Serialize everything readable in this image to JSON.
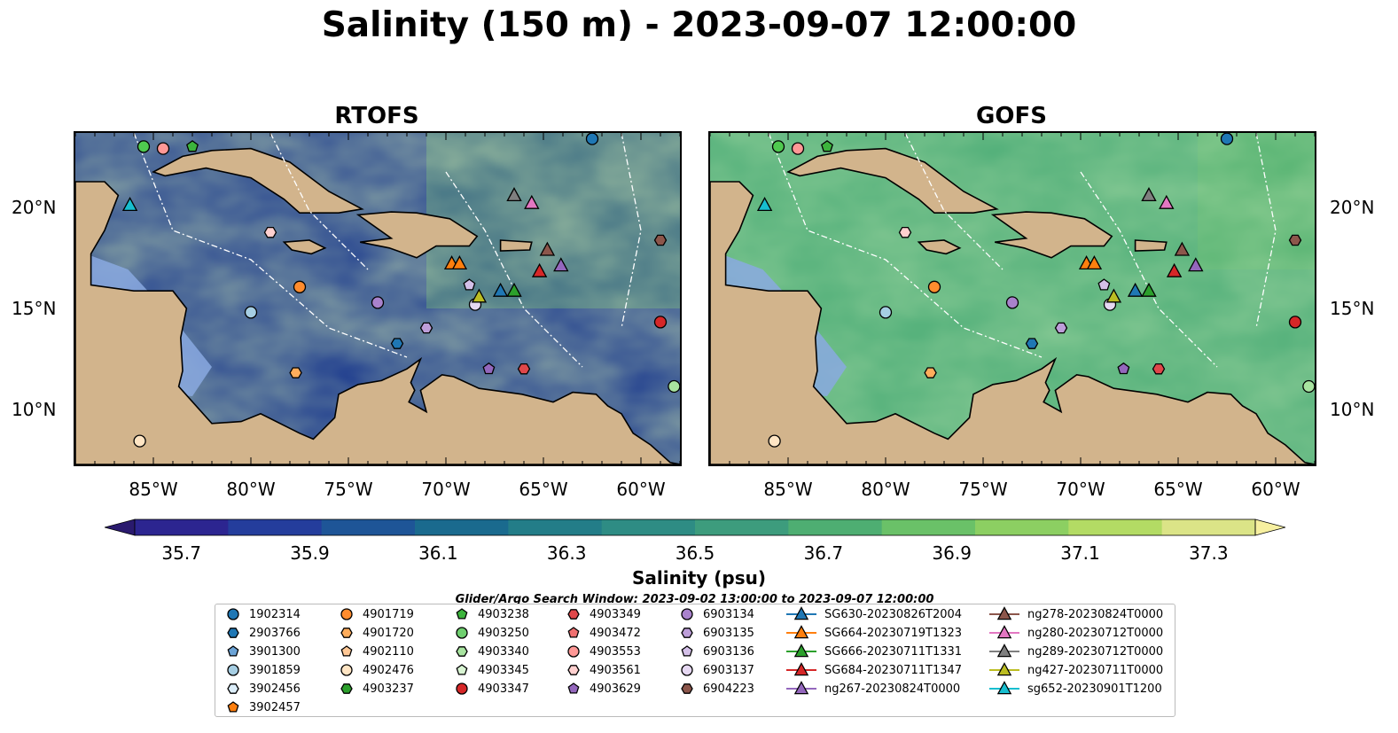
{
  "title": "Salinity (150 m) - 2023-09-07 12:00:00",
  "panels": [
    {
      "title": "RTOFS",
      "ocean_color": "#1f3d8f"
    },
    {
      "title": "GOFS",
      "ocean_color": "#4fae78"
    }
  ],
  "lat_labels": [
    "20°N",
    "15°N",
    "10°N"
  ],
  "lon_labels": [
    "85°W",
    "80°W",
    "75°W",
    "70°W",
    "65°W",
    "60°W"
  ],
  "colorbar": {
    "label": "Salinity (psu)",
    "ticks": [
      "35.7",
      "35.9",
      "36.1",
      "36.3",
      "36.5",
      "36.7",
      "36.9",
      "37.1",
      "37.3"
    ],
    "colors": [
      "#2a1a6e",
      "#2c2590",
      "#243d9c",
      "#1e5597",
      "#1a6a8e",
      "#237d88",
      "#2e8c84",
      "#3d9c7d",
      "#4eae72",
      "#6ac168",
      "#8ccf62",
      "#b3db64",
      "#dbe487",
      "#f7f0a0"
    ]
  },
  "search_window": "Glider/Argo Search Window: 2023-09-02 13:00:00 to 2023-09-07 12:00:00",
  "legend": [
    {
      "label": "1902314",
      "shape": "circle",
      "color": "#1f77b4"
    },
    {
      "label": "2903766",
      "shape": "hexagon",
      "color": "#1f77b4"
    },
    {
      "label": "3901300",
      "shape": "pentagon",
      "color": "#6ba3d6"
    },
    {
      "label": "3901859",
      "shape": "circle",
      "color": "#a6cee3"
    },
    {
      "label": "3902456",
      "shape": "hexagon",
      "color": "#dceefa"
    },
    {
      "label": "3902457",
      "shape": "pentagon",
      "color": "#ff7f0e"
    },
    {
      "label": "4901719",
      "shape": "circle",
      "color": "#ff8c2e"
    },
    {
      "label": "4901720",
      "shape": "hexagon",
      "color": "#ffad5c"
    },
    {
      "label": "4902110",
      "shape": "pentagon",
      "color": "#ffc896"
    },
    {
      "label": "4902476",
      "shape": "circle",
      "color": "#ffe5c4"
    },
    {
      "label": "4903237",
      "shape": "hexagon",
      "color": "#2ca02c"
    },
    {
      "label": "4903238",
      "shape": "pentagon",
      "color": "#3cb43c"
    },
    {
      "label": "4903250",
      "shape": "circle",
      "color": "#6fcf6f"
    },
    {
      "label": "4903340",
      "shape": "hexagon",
      "color": "#a8e4a0"
    },
    {
      "label": "4903345",
      "shape": "pentagon",
      "color": "#d9f5d3"
    },
    {
      "label": "4903347",
      "shape": "circle",
      "color": "#d62728"
    },
    {
      "label": "4903349",
      "shape": "hexagon",
      "color": "#e0474a"
    },
    {
      "label": "4903472",
      "shape": "pentagon",
      "color": "#f07070"
    },
    {
      "label": "4903553",
      "shape": "circle",
      "color": "#ff9896"
    },
    {
      "label": "4903561",
      "shape": "hexagon",
      "color": "#ffd0cf"
    },
    {
      "label": "4903629",
      "shape": "pentagon",
      "color": "#9467bd"
    },
    {
      "label": "6903134",
      "shape": "circle",
      "color": "#a982cc"
    },
    {
      "label": "6903135",
      "shape": "hexagon",
      "color": "#bd9ed9"
    },
    {
      "label": "6903136",
      "shape": "pentagon",
      "color": "#d4c0e8"
    },
    {
      "label": "6903137",
      "shape": "circle",
      "color": "#e6d8f2"
    },
    {
      "label": "6904223",
      "shape": "hexagon",
      "color": "#8c564b"
    },
    {
      "label": "SG630-20230826T2004",
      "shape": "triangle",
      "color": "#1f77b4"
    },
    {
      "label": "SG664-20230719T1323",
      "shape": "triangle",
      "color": "#ff7f0e"
    },
    {
      "label": "SG666-20230711T1331",
      "shape": "triangle",
      "color": "#2ca02c"
    },
    {
      "label": "SG684-20230711T1347",
      "shape": "triangle",
      "color": "#d62728"
    },
    {
      "label": "ng267-20230824T0000",
      "shape": "triangle",
      "color": "#9467bd"
    },
    {
      "label": "ng278-20230824T0000",
      "shape": "triangle",
      "color": "#8c564b"
    },
    {
      "label": "ng280-20230712T0000",
      "shape": "triangle",
      "color": "#e377c2"
    },
    {
      "label": "ng289-20230712T0000",
      "shape": "triangle",
      "color": "#7f7f7f"
    },
    {
      "label": "ng427-20230711T0000",
      "shape": "triangle",
      "color": "#bcbd22"
    },
    {
      "label": "sg652-20230901T1200",
      "shape": "triangle",
      "color": "#17becf"
    }
  ],
  "markers": [
    {
      "lon": -85.5,
      "lat": 23.3,
      "shape": "circle",
      "color": "#4fc94f"
    },
    {
      "lon": -84.5,
      "lat": 23.2,
      "shape": "circle",
      "color": "#ff9896"
    },
    {
      "lon": -83.0,
      "lat": 23.3,
      "shape": "pentagon",
      "color": "#3cb43c"
    },
    {
      "lon": -86.2,
      "lat": 20.3,
      "shape": "triangle",
      "color": "#17becf"
    },
    {
      "lon": -79.0,
      "lat": 18.9,
      "shape": "hexagon",
      "color": "#ffd0cf"
    },
    {
      "lon": -77.5,
      "lat": 16.1,
      "shape": "circle",
      "color": "#ff8c2e"
    },
    {
      "lon": -80.0,
      "lat": 14.8,
      "shape": "circle",
      "color": "#a6cee3"
    },
    {
      "lon": -73.5,
      "lat": 15.3,
      "shape": "circle",
      "color": "#a982cc"
    },
    {
      "lon": -72.5,
      "lat": 13.2,
      "shape": "hexagon",
      "color": "#1f77b4"
    },
    {
      "lon": -71.0,
      "lat": 14.0,
      "shape": "hexagon",
      "color": "#bd9ed9"
    },
    {
      "lon": -77.7,
      "lat": 11.7,
      "shape": "hexagon",
      "color": "#ffad5c"
    },
    {
      "lon": -85.7,
      "lat": 8.2,
      "shape": "circle",
      "color": "#ffe5c4"
    },
    {
      "lon": -69.7,
      "lat": 17.3,
      "shape": "triangle",
      "color": "#ff7f0e"
    },
    {
      "lon": -69.3,
      "lat": 17.3,
      "shape": "triangle",
      "color": "#ff7f0e"
    },
    {
      "lon": -68.8,
      "lat": 16.2,
      "shape": "pentagon",
      "color": "#d4c0e8"
    },
    {
      "lon": -68.5,
      "lat": 15.2,
      "shape": "circle",
      "color": "#e6d8f2"
    },
    {
      "lon": -68.3,
      "lat": 15.6,
      "shape": "triangle",
      "color": "#bcbd22"
    },
    {
      "lon": -67.2,
      "lat": 15.9,
      "shape": "triangle",
      "color": "#1f77b4"
    },
    {
      "lon": -66.5,
      "lat": 15.9,
      "shape": "triangle",
      "color": "#2ca02c"
    },
    {
      "lon": -66.5,
      "lat": 20.8,
      "shape": "triangle",
      "color": "#7f7f7f"
    },
    {
      "lon": -65.6,
      "lat": 20.4,
      "shape": "triangle",
      "color": "#e377c2"
    },
    {
      "lon": -64.8,
      "lat": 18.0,
      "shape": "triangle",
      "color": "#8c564b"
    },
    {
      "lon": -65.2,
      "lat": 16.9,
      "shape": "triangle",
      "color": "#d62728"
    },
    {
      "lon": -64.1,
      "lat": 17.2,
      "shape": "triangle",
      "color": "#9467bd"
    },
    {
      "lon": -66.0,
      "lat": 11.9,
      "shape": "hexagon",
      "color": "#e0474a"
    },
    {
      "lon": -67.8,
      "lat": 11.9,
      "shape": "pentagon",
      "color": "#9467bd"
    },
    {
      "lon": -59.0,
      "lat": 18.5,
      "shape": "hexagon",
      "color": "#8c564b"
    },
    {
      "lon": -59.0,
      "lat": 14.3,
      "shape": "circle",
      "color": "#d62728"
    },
    {
      "lon": -58.3,
      "lat": 11.0,
      "shape": "circle",
      "color": "#a8e4a0"
    },
    {
      "lon": -62.5,
      "lat": 23.7,
      "shape": "circle",
      "color": "#1f77b4"
    }
  ]
}
